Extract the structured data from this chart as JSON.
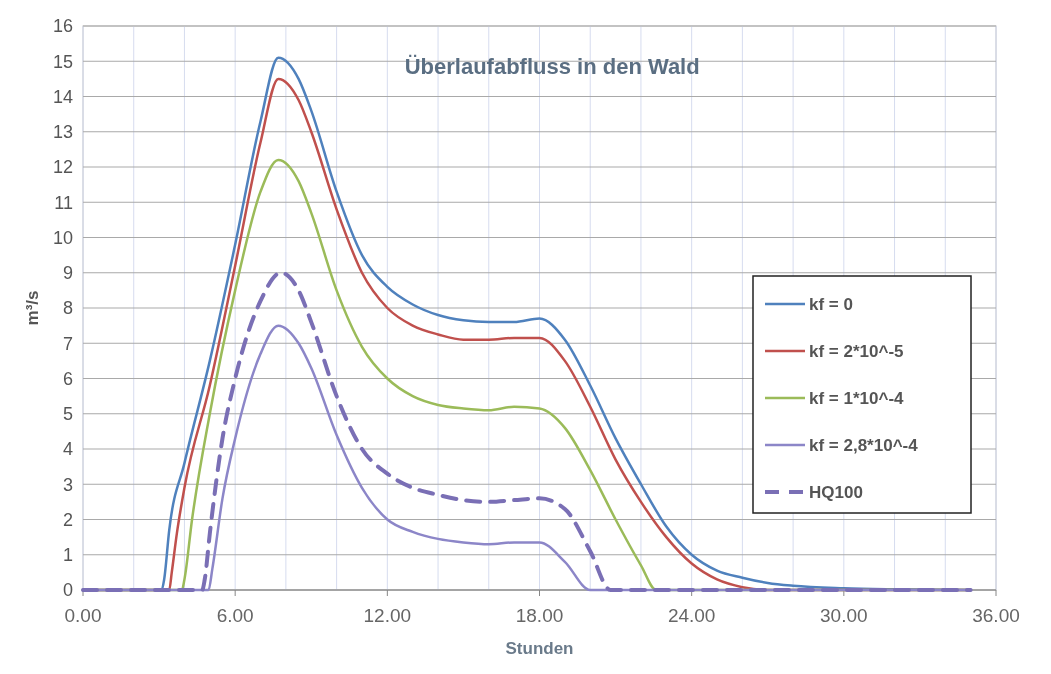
{
  "chart_data": {
    "type": "line",
    "title": "Überlaufabfluss in den Wald",
    "xlabel": "Stunden",
    "ylabel": "m³/s",
    "xlim": [
      0,
      36
    ],
    "ylim": [
      0,
      16
    ],
    "xticks": [
      {
        "value": 0,
        "label": "0.00"
      },
      {
        "value": 2,
        "label": null
      },
      {
        "value": 4,
        "label": null
      },
      {
        "value": 6,
        "label": "6.00"
      },
      {
        "value": 8,
        "label": null
      },
      {
        "value": 10,
        "label": null
      },
      {
        "value": 12,
        "label": "12.00"
      },
      {
        "value": 14,
        "label": null
      },
      {
        "value": 16,
        "label": null
      },
      {
        "value": 18,
        "label": "18.00"
      },
      {
        "value": 20,
        "label": null
      },
      {
        "value": 22,
        "label": null
      },
      {
        "value": 24,
        "label": "24.00"
      },
      {
        "value": 26,
        "label": null
      },
      {
        "value": 28,
        "label": null
      },
      {
        "value": 30,
        "label": "30.00"
      },
      {
        "value": 32,
        "label": null
      },
      {
        "value": 34,
        "label": null
      },
      {
        "value": 36,
        "label": "36.00"
      }
    ],
    "yticks": [
      0,
      1,
      2,
      3,
      4,
      5,
      6,
      7,
      8,
      9,
      10,
      11,
      12,
      13,
      14,
      15,
      16
    ],
    "grid": true,
    "legend": "right",
    "marker": "none",
    "series": [
      {
        "name": "kf = 0",
        "color": "#4f81bd",
        "x": [
          0,
          3.1,
          3.2,
          3.4,
          4,
          5,
          6,
          7,
          7.7,
          8.5,
          9,
          10,
          11,
          12,
          13,
          14,
          15,
          16,
          17,
          18,
          19,
          20,
          21,
          22,
          23,
          24,
          25,
          26,
          27,
          28,
          30,
          32,
          35
        ],
        "values": [
          0,
          0,
          0.3,
          1.7,
          3.6,
          6.5,
          9.8,
          13.3,
          15.1,
          14.5,
          13.6,
          11.3,
          9.5,
          8.6,
          8.1,
          7.8,
          7.65,
          7.6,
          7.6,
          7.7,
          7.1,
          5.8,
          4.3,
          3.0,
          1.8,
          1.0,
          0.55,
          0.35,
          0.2,
          0.12,
          0.05,
          0.02,
          0
        ]
      },
      {
        "name": "kf = 2*10^-5",
        "color": "#c0504d",
        "x": [
          0,
          3.4,
          3.5,
          3.7,
          4,
          5,
          6,
          7,
          7.7,
          8.5,
          9,
          10,
          11,
          12,
          13,
          14,
          15,
          16,
          17,
          18,
          19,
          20,
          21,
          22,
          23,
          24,
          25,
          26,
          27,
          35
        ],
        "values": [
          0,
          0,
          0.5,
          1.6,
          2.9,
          5.8,
          9.2,
          12.7,
          14.5,
          13.9,
          13.0,
          10.8,
          9.0,
          8.0,
          7.5,
          7.25,
          7.1,
          7.1,
          7.15,
          7.15,
          6.5,
          5.2,
          3.7,
          2.5,
          1.5,
          0.75,
          0.3,
          0.08,
          0,
          0
        ]
      },
      {
        "name": "kf = 1*10^-4",
        "color": "#9bbb59",
        "x": [
          0,
          3.9,
          4.0,
          4.3,
          5,
          6,
          7,
          7.7,
          8.5,
          9,
          10,
          11,
          12,
          13,
          14,
          15,
          16,
          17,
          18,
          19,
          20,
          21,
          22,
          22.6,
          35
        ],
        "values": [
          0,
          0,
          0.3,
          2.0,
          5.0,
          8.5,
          11.3,
          12.2,
          11.6,
          10.7,
          8.5,
          6.9,
          6.0,
          5.5,
          5.25,
          5.15,
          5.1,
          5.2,
          5.15,
          4.6,
          3.4,
          2.0,
          0.7,
          0,
          0
        ]
      },
      {
        "name": "kf = 2,8*10^-4",
        "color": "#8c86c8",
        "x": [
          0,
          4.95,
          5.1,
          5.5,
          6,
          7,
          7.7,
          8.5,
          9,
          10,
          11,
          12,
          13,
          14,
          15,
          16,
          17,
          18,
          19,
          20,
          35
        ],
        "values": [
          0,
          0,
          0.6,
          2.6,
          4.3,
          6.7,
          7.5,
          7.0,
          6.3,
          4.4,
          2.9,
          2.0,
          1.65,
          1.45,
          1.35,
          1.3,
          1.35,
          1.35,
          0.8,
          0,
          0
        ]
      },
      {
        "name": "HQ100",
        "color": "#7a6fb5",
        "line_style": "dashed",
        "x": [
          0,
          4.7,
          4.8,
          5,
          5.5,
          6,
          7,
          7.8,
          8.5,
          9,
          10,
          11,
          12,
          13,
          14,
          15,
          16,
          17,
          18,
          19,
          20,
          20.8,
          35
        ],
        "values": [
          0,
          0,
          0.3,
          1.6,
          4.3,
          6.0,
          8.2,
          9.0,
          8.5,
          7.6,
          5.5,
          4.0,
          3.3,
          2.9,
          2.7,
          2.55,
          2.5,
          2.55,
          2.6,
          2.3,
          1.1,
          0,
          0
        ]
      }
    ]
  }
}
